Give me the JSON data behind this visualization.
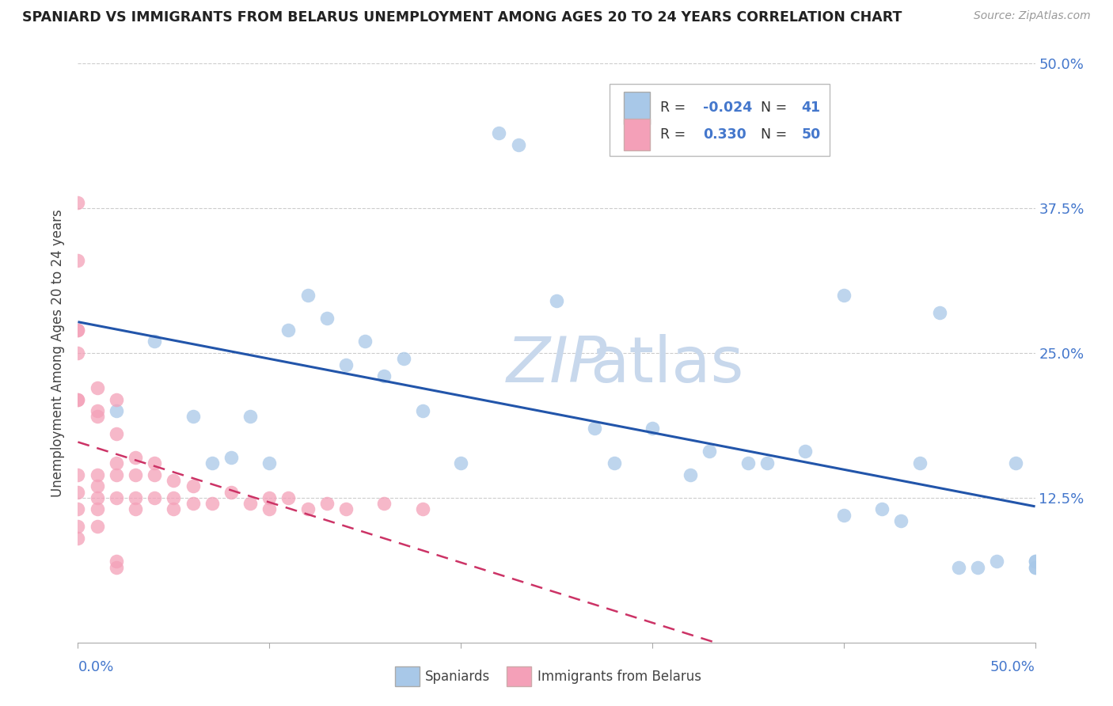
{
  "title": "SPANIARD VS IMMIGRANTS FROM BELARUS UNEMPLOYMENT AMONG AGES 20 TO 24 YEARS CORRELATION CHART",
  "source": "Source: ZipAtlas.com",
  "ylabel": "Unemployment Among Ages 20 to 24 years",
  "yticks": [
    "12.5%",
    "25.0%",
    "37.5%",
    "50.0%"
  ],
  "ytick_vals": [
    0.125,
    0.25,
    0.375,
    0.5
  ],
  "xlim": [
    0,
    0.5
  ],
  "ylim": [
    0,
    0.5
  ],
  "spaniards_R": -0.024,
  "spaniards_N": 41,
  "belarus_R": 0.33,
  "belarus_N": 50,
  "legend_label1": "Spaniards",
  "legend_label2": "Immigrants from Belarus",
  "color_spaniards": "#a8c8e8",
  "color_belarus": "#f4a0b8",
  "color_trend_spaniards": "#2255aa",
  "color_trend_belarus": "#cc3366",
  "spaniards_x": [
    0.02,
    0.04,
    0.06,
    0.07,
    0.08,
    0.09,
    0.1,
    0.11,
    0.12,
    0.13,
    0.14,
    0.15,
    0.16,
    0.17,
    0.18,
    0.2,
    0.22,
    0.23,
    0.25,
    0.27,
    0.28,
    0.3,
    0.32,
    0.33,
    0.35,
    0.36,
    0.38,
    0.4,
    0.4,
    0.42,
    0.43,
    0.44,
    0.45,
    0.46,
    0.47,
    0.48,
    0.49,
    0.5,
    0.5,
    0.5,
    0.5
  ],
  "spaniards_y": [
    0.2,
    0.26,
    0.195,
    0.155,
    0.16,
    0.195,
    0.155,
    0.27,
    0.3,
    0.28,
    0.24,
    0.26,
    0.23,
    0.245,
    0.2,
    0.155,
    0.44,
    0.43,
    0.295,
    0.185,
    0.155,
    0.185,
    0.145,
    0.165,
    0.155,
    0.155,
    0.165,
    0.3,
    0.11,
    0.115,
    0.105,
    0.155,
    0.285,
    0.065,
    0.065,
    0.07,
    0.155,
    0.065,
    0.065,
    0.07,
    0.07
  ],
  "belarus_x": [
    0.0,
    0.0,
    0.0,
    0.0,
    0.0,
    0.0,
    0.0,
    0.0,
    0.0,
    0.0,
    0.0,
    0.0,
    0.01,
    0.01,
    0.01,
    0.01,
    0.01,
    0.01,
    0.01,
    0.01,
    0.02,
    0.02,
    0.02,
    0.02,
    0.02,
    0.03,
    0.03,
    0.03,
    0.03,
    0.04,
    0.04,
    0.04,
    0.05,
    0.05,
    0.05,
    0.06,
    0.06,
    0.07,
    0.08,
    0.09,
    0.1,
    0.1,
    0.11,
    0.12,
    0.13,
    0.14,
    0.16,
    0.18,
    0.02,
    0.02
  ],
  "belarus_y": [
    0.38,
    0.33,
    0.27,
    0.27,
    0.25,
    0.21,
    0.21,
    0.145,
    0.13,
    0.115,
    0.1,
    0.09,
    0.22,
    0.2,
    0.195,
    0.145,
    0.135,
    0.125,
    0.115,
    0.1,
    0.21,
    0.18,
    0.155,
    0.145,
    0.125,
    0.16,
    0.145,
    0.125,
    0.115,
    0.155,
    0.145,
    0.125,
    0.14,
    0.125,
    0.115,
    0.135,
    0.12,
    0.12,
    0.13,
    0.12,
    0.125,
    0.115,
    0.125,
    0.115,
    0.12,
    0.115,
    0.12,
    0.115,
    0.07,
    0.065
  ]
}
